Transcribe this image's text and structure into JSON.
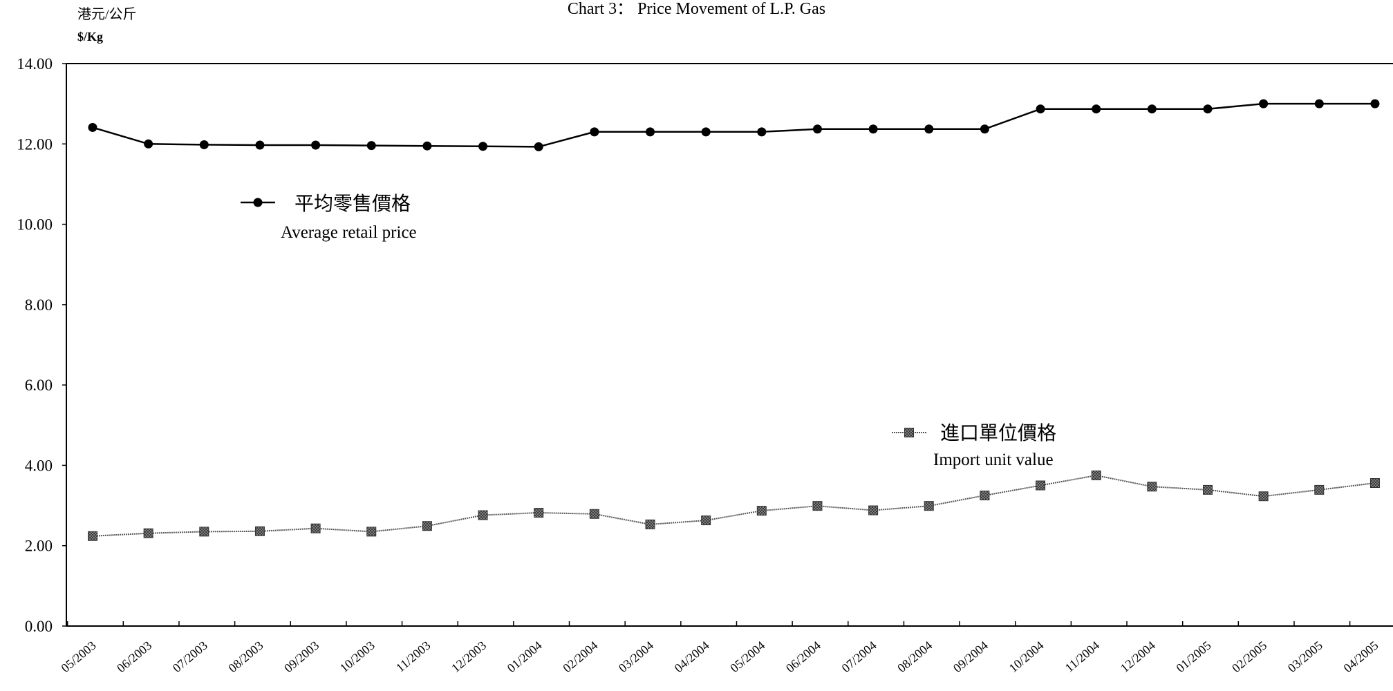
{
  "chart_data": {
    "type": "line",
    "title": "Chart 3： Price Movement of L.P. Gas",
    "ylabel_zh": "港元/公斤",
    "ylabel_en": "$/Kg",
    "xlabel": "",
    "ylim": [
      0,
      14
    ],
    "yticks": [
      "0.00",
      "2.00",
      "4.00",
      "6.00",
      "8.00",
      "10.00",
      "12.00",
      "14.00"
    ],
    "grid": false,
    "categories": [
      "05/2003",
      "06/2003",
      "07/2003",
      "08/2003",
      "09/2003",
      "10/2003",
      "11/2003",
      "12/2003",
      "01/2004",
      "02/2004",
      "03/2004",
      "04/2004",
      "05/2004",
      "06/2004",
      "07/2004",
      "08/2004",
      "09/2004",
      "10/2004",
      "11/2004",
      "12/2004",
      "01/2005",
      "02/2005",
      "03/2005",
      "04/2005"
    ],
    "series": [
      {
        "key": "retail",
        "name_zh": "平均零售價格",
        "name_en": "Average retail price",
        "marker": "circle",
        "color": "#000000",
        "values": [
          12.41,
          12.0,
          11.98,
          11.97,
          11.97,
          11.96,
          11.95,
          11.94,
          11.93,
          12.3,
          12.3,
          12.3,
          12.3,
          12.37,
          12.37,
          12.37,
          12.37,
          12.87,
          12.87,
          12.87,
          12.87,
          13.0,
          13.0,
          13.0
        ]
      },
      {
        "key": "import",
        "name_zh": "進口單位價格",
        "name_en": "Import unit value",
        "marker": "square",
        "color": "#555555",
        "values": [
          2.24,
          2.31,
          2.35,
          2.36,
          2.43,
          2.35,
          2.49,
          2.76,
          2.82,
          2.79,
          2.53,
          2.63,
          2.87,
          2.99,
          2.88,
          2.99,
          3.25,
          3.5,
          3.75,
          3.47,
          3.39,
          3.23,
          3.39,
          3.56
        ]
      }
    ]
  }
}
